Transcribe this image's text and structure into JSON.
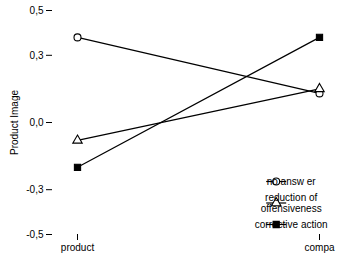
{
  "chart_data": {
    "type": "line",
    "categories": [
      "product",
      "compa"
    ],
    "series": [
      {
        "name": "no answ er",
        "color": "#000000",
        "marker": "circle-open",
        "line_style": "solid",
        "values": [
          0.38,
          0.13
        ]
      },
      {
        "name": "reduction of\noffensiveness",
        "color": "#000000",
        "marker": "triangle-open",
        "line_style": "solid",
        "values": [
          -0.08,
          0.15
        ]
      },
      {
        "name": "corrective action",
        "color": "#000000",
        "marker": "square",
        "line_style": "solid",
        "values": [
          -0.2,
          0.38
        ]
      }
    ],
    "ylabel": "Product Image",
    "ylim": [
      -0.5,
      0.5
    ],
    "yticks": [
      {
        "value": -0.5,
        "label": "-0,5"
      },
      {
        "value": -0.3,
        "label": "-0,3"
      },
      {
        "value": 0.0,
        "label": "0,0"
      },
      {
        "value": 0.3,
        "label": "0,3"
      },
      {
        "value": 0.5,
        "label": "0,5"
      }
    ],
    "grid": false,
    "legend": "lower right"
  }
}
